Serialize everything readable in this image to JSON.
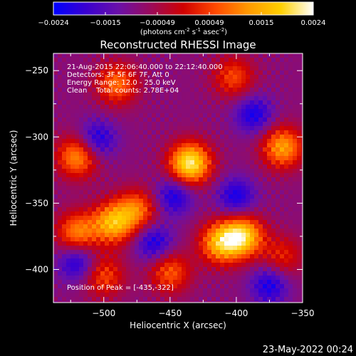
{
  "colorbar": {
    "ticks": [
      "-0.0024",
      "-0.0015",
      "-0.00049",
      "0.00049",
      "0.0015",
      "0.0024"
    ],
    "units_text": "(photons cm",
    "units_sup1": "-2",
    "units_mid": " s",
    "units_sup2": "-1",
    "units_mid2": " asec",
    "units_sup3": "-2",
    "units_end": ")",
    "stops": [
      "#0000ff",
      "#3a00d0",
      "#6a10a8",
      "#9b0a5a",
      "#d00000",
      "#ff4a00",
      "#ff9900",
      "#ffd000",
      "#ffffff"
    ]
  },
  "title": "Reconstructed RHESSI Image",
  "annotations": {
    "line1": "21-Aug-2015 22:06:40.000 to 22:12:40.000",
    "line2": "Detectors: 3F 5F 6F 7F, Att 0",
    "line3": "Energy Range: 12.0 - 25.0 keV",
    "line4": "Clean    Total counts: 2.78E+04",
    "peak": "Position of Peak = [-435,-322]"
  },
  "footer": "23-May-2022 00:24",
  "chart_data": {
    "type": "heatmap",
    "title": "Reconstructed RHESSI Image",
    "xlabel": "Heliocentric X (arcsec)",
    "ylabel": "Heliocentric Y (arcsec)",
    "xlim": [
      -538,
      -350
    ],
    "ylim": [
      -425,
      -237
    ],
    "xticks": [
      -500,
      -450,
      -400,
      -350
    ],
    "yticks": [
      -400,
      -350,
      -300,
      -250
    ],
    "colorbar_range": [
      -0.0024,
      0.0024
    ],
    "peak_position": [
      -435,
      -322
    ],
    "sources": [
      {
        "x": -435,
        "y": -320,
        "intensity": 1.0
      },
      {
        "x": -395,
        "y": -375,
        "intensity": 0.85
      },
      {
        "x": -412,
        "y": -380,
        "intensity": 0.75
      },
      {
        "x": -493,
        "y": -365,
        "intensity": 0.75
      },
      {
        "x": -520,
        "y": -372,
        "intensity": 0.6
      },
      {
        "x": -475,
        "y": -355,
        "intensity": 0.55
      },
      {
        "x": -365,
        "y": -308,
        "intensity": 0.7
      },
      {
        "x": -520,
        "y": -315,
        "intensity": 0.65
      },
      {
        "x": -490,
        "y": -260,
        "intensity": 0.55
      },
      {
        "x": -402,
        "y": -255,
        "intensity": 0.45
      },
      {
        "x": -450,
        "y": -402,
        "intensity": 0.5
      },
      {
        "x": -500,
        "y": -405,
        "intensity": 0.45
      },
      {
        "x": -365,
        "y": -390,
        "intensity": 0.35
      }
    ],
    "negative_regions": [
      {
        "x": -387,
        "y": -283
      },
      {
        "x": -400,
        "y": -345
      },
      {
        "x": -462,
        "y": -380
      },
      {
        "x": -520,
        "y": -395
      },
      {
        "x": -447,
        "y": -345
      },
      {
        "x": -505,
        "y": -302
      },
      {
        "x": -375,
        "y": -412
      }
    ]
  }
}
